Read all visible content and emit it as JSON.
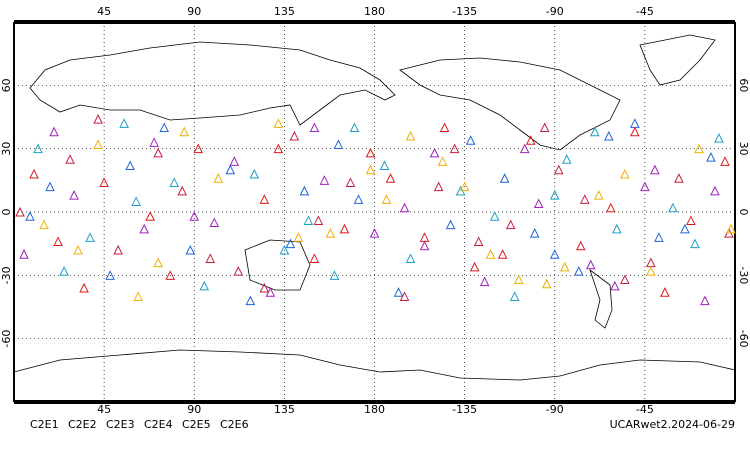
{
  "chart_data": {
    "type": "scatter",
    "footer": "UCARwet2.2024-06-29",
    "xlim": [
      0,
      360
    ],
    "ylim": [
      -90,
      90
    ],
    "xticks": [
      45,
      90,
      135,
      180,
      {
        "value": 225,
        "label": "-135"
      },
      {
        "value": 270,
        "label": "-90"
      },
      {
        "value": 315,
        "label": "-45"
      }
    ],
    "yticks": [
      60,
      30,
      0,
      -30,
      -60
    ],
    "grid": true,
    "marker": "triangle",
    "series": [
      {
        "name": "C2E1",
        "color": "#1aa0c8",
        "x": [
          12,
          38,
          61,
          95,
          120,
          147,
          170,
          198,
          223,
          250,
          276,
          301,
          329,
          352,
          25,
          80,
          135,
          185,
          240,
          290,
          340,
          55,
          160,
          270
        ],
        "values": [
          30,
          -12,
          5,
          -35,
          18,
          -4,
          40,
          -22,
          10,
          -40,
          25,
          -8,
          2,
          35,
          -28,
          14,
          -18,
          22,
          -2,
          38,
          -15,
          42,
          -30,
          8
        ]
      },
      {
        "name": "C2E2",
        "color": "#a020c0",
        "x": [
          5,
          30,
          70,
          100,
          128,
          155,
          180,
          210,
          235,
          262,
          288,
          315,
          345,
          20,
          65,
          110,
          150,
          205,
          255,
          300,
          350,
          90,
          195,
          320
        ],
        "values": [
          -20,
          8,
          33,
          -5,
          -38,
          15,
          -10,
          28,
          -33,
          4,
          -25,
          12,
          -42,
          38,
          -8,
          24,
          40,
          -16,
          30,
          -35,
          10,
          -2,
          2,
          20
        ]
      },
      {
        "name": "C2E3",
        "color": "#1e64dc",
        "x": [
          18,
          48,
          75,
          108,
          138,
          162,
          192,
          218,
          245,
          270,
          297,
          322,
          348,
          8,
          58,
          118,
          172,
          228,
          282,
          335,
          88,
          145,
          260,
          310
        ],
        "values": [
          12,
          -30,
          40,
          20,
          -15,
          32,
          -38,
          -6,
          16,
          -20,
          36,
          -12,
          26,
          -2,
          22,
          -42,
          6,
          34,
          -28,
          -8,
          -18,
          10,
          -10,
          42
        ]
      },
      {
        "name": "C2E4",
        "color": "#c81e3c",
        "x": [
          3,
          28,
          52,
          84,
          112,
          140,
          168,
          195,
          220,
          248,
          272,
          305,
          332,
          357,
          42,
          98,
          152,
          212,
          265,
          318,
          72,
          125,
          232,
          285
        ],
        "values": [
          0,
          25,
          -18,
          10,
          -28,
          36,
          14,
          -40,
          30,
          -6,
          20,
          -32,
          16,
          -10,
          44,
          -22,
          -4,
          12,
          40,
          -24,
          28,
          -36,
          -14,
          6
        ]
      },
      {
        "name": "C2E5",
        "color": "#e01818",
        "x": [
          10,
          35,
          68,
          92,
          125,
          150,
          178,
          205,
          230,
          258,
          283,
          310,
          338,
          22,
          78,
          132,
          188,
          244,
          298,
          355,
          45,
          165,
          215,
          325
        ],
        "values": [
          18,
          -36,
          -2,
          30,
          6,
          -22,
          28,
          -12,
          -26,
          34,
          -16,
          38,
          -4,
          -14,
          -30,
          30,
          16,
          -20,
          2,
          24,
          14,
          -8,
          40,
          -38
        ]
      },
      {
        "name": "C2E6",
        "color": "#f0b000",
        "x": [
          15,
          42,
          72,
          102,
          132,
          158,
          186,
          214,
          238,
          266,
          292,
          318,
          342,
          32,
          85,
          142,
          198,
          252,
          305,
          358,
          62,
          178,
          275,
          225
        ],
        "values": [
          -6,
          32,
          -24,
          16,
          42,
          -10,
          6,
          24,
          -20,
          -34,
          8,
          -28,
          30,
          -18,
          38,
          -12,
          36,
          -32,
          18,
          -8,
          -40,
          20,
          -26,
          12
        ]
      }
    ]
  }
}
